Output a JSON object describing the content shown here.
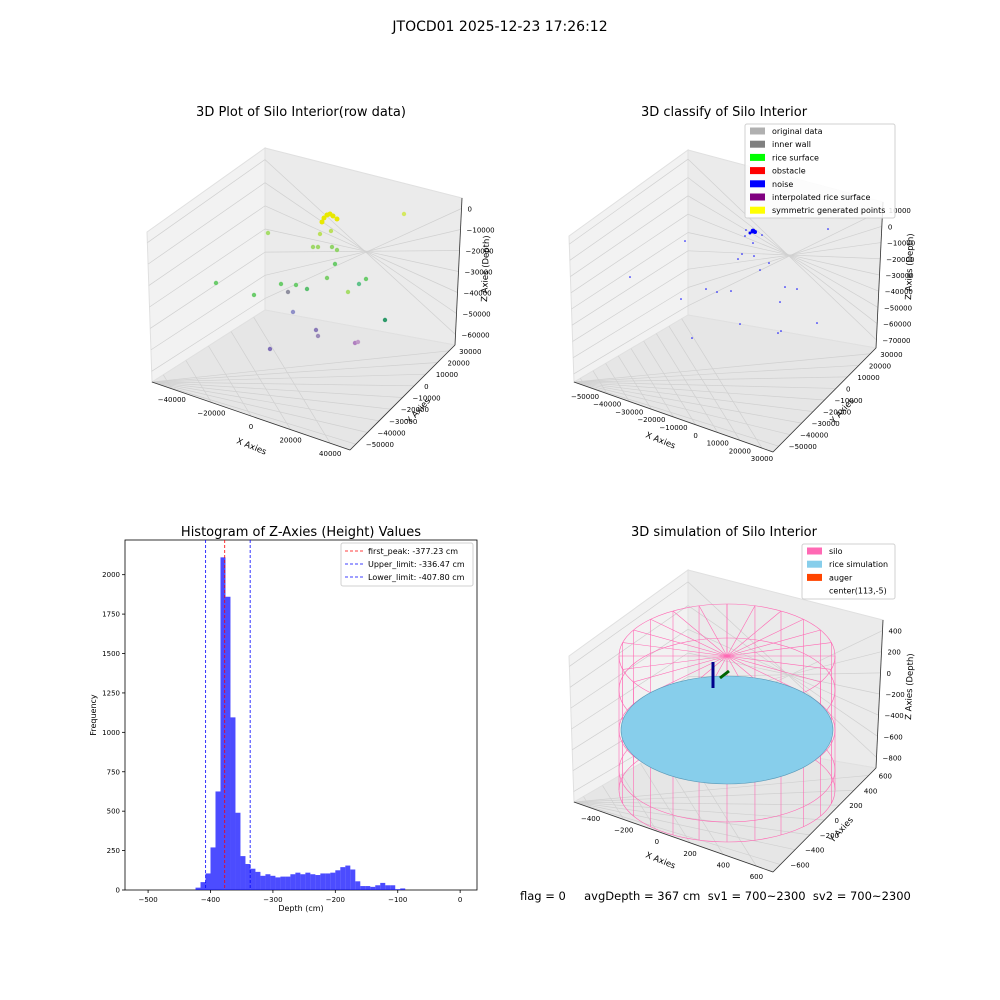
{
  "figure": {
    "suptitle": "JTOCD01 2025-12-23 17:26:12",
    "status_text": "flag = 0     avgDepth = 367 cm  sv1 = 700~2300  sv2 = 700~2300"
  },
  "panel1": {
    "title": "3D Plot of Silo Interior(row data)",
    "xlabel": "X Axies",
    "ylabel": "Y Axies",
    "zlabel": "Z Axies (Depth)",
    "xticks": [
      "−40000",
      "−20000",
      "0",
      "20000",
      "40000"
    ],
    "yticks": [
      "30000",
      "20000",
      "10000",
      "0",
      "−10000",
      "−20000",
      "−30000",
      "−40000",
      "−50000"
    ],
    "zticks": [
      "0",
      "−10000",
      "−20000",
      "−30000",
      "−40000",
      "−50000",
      "−60000"
    ]
  },
  "panel2": {
    "title": "3D classify of Silo Interior",
    "xlabel": "X Axies",
    "ylabel": "Y Axies",
    "zlabel": "Z Axies (Depth)",
    "xticks": [
      "−50000",
      "−40000",
      "−30000",
      "−20000",
      "−10000",
      "0",
      "10000",
      "20000",
      "30000"
    ],
    "yticks": [
      "30000",
      "20000",
      "10000",
      "0",
      "−10000",
      "−20000",
      "−30000",
      "−40000",
      "−50000"
    ],
    "zticks": [
      "10000",
      "0",
      "−10000",
      "−20000",
      "−30000",
      "−40000",
      "−50000",
      "−60000",
      "−70000"
    ],
    "legend": [
      {
        "label": "original data",
        "color": "#b0b0b0"
      },
      {
        "label": "inner wall",
        "color": "#808080"
      },
      {
        "label": "rice surface",
        "color": "#00ff00"
      },
      {
        "label": "obstacle",
        "color": "#ff0000"
      },
      {
        "label": "noise",
        "color": "#0000ff"
      },
      {
        "label": "interpolated rice surface",
        "color": "#800080"
      },
      {
        "label": "symmetric generated points",
        "color": "#ffff00"
      }
    ]
  },
  "panel4": {
    "title": "3D simulation of Silo Interior",
    "xlabel": "X Axies",
    "ylabel": "Y Axies",
    "zlabel": "Z Axies (Depth)",
    "xticks": [
      "−400",
      "−200",
      "0",
      "200",
      "400",
      "600"
    ],
    "yticks": [
      "600",
      "400",
      "200",
      "0",
      "−200",
      "−400",
      "−600"
    ],
    "zticks": [
      "400",
      "200",
      "0",
      "−200",
      "−400",
      "−600",
      "−800"
    ],
    "legend": [
      {
        "label": "silo",
        "color": "#ff69b4"
      },
      {
        "label": "rice simulation",
        "color": "#87ceeb"
      },
      {
        "label": "auger",
        "color": "#ff4500"
      },
      {
        "label": "center(113,-5)",
        "color": ""
      }
    ]
  },
  "chart_data": {
    "type": "bar",
    "title": "Histogram of Z-Axies (Height) Values",
    "xlabel": "Depth (cm)",
    "ylabel": "Frequency",
    "xlim": [
      -537,
      27
    ],
    "ylim": [
      0,
      2220
    ],
    "bar_color": "#0000ff",
    "bin_width": 8,
    "bins": [
      {
        "x": -424,
        "y": 15
      },
      {
        "x": -416,
        "y": 50
      },
      {
        "x": -408,
        "y": 105
      },
      {
        "x": -400,
        "y": 270
      },
      {
        "x": -392,
        "y": 625
      },
      {
        "x": -384,
        "y": 2110
      },
      {
        "x": -376,
        "y": 1860
      },
      {
        "x": -368,
        "y": 1095
      },
      {
        "x": -360,
        "y": 490
      },
      {
        "x": -352,
        "y": 215
      },
      {
        "x": -344,
        "y": 165
      },
      {
        "x": -336,
        "y": 135
      },
      {
        "x": -328,
        "y": 115
      },
      {
        "x": -320,
        "y": 90
      },
      {
        "x": -312,
        "y": 100
      },
      {
        "x": -304,
        "y": 90
      },
      {
        "x": -296,
        "y": 80
      },
      {
        "x": -288,
        "y": 85
      },
      {
        "x": -280,
        "y": 85
      },
      {
        "x": -272,
        "y": 100
      },
      {
        "x": -264,
        "y": 110
      },
      {
        "x": -256,
        "y": 100
      },
      {
        "x": -248,
        "y": 110
      },
      {
        "x": -240,
        "y": 100
      },
      {
        "x": -232,
        "y": 95
      },
      {
        "x": -224,
        "y": 105
      },
      {
        "x": -216,
        "y": 105
      },
      {
        "x": -208,
        "y": 110
      },
      {
        "x": -200,
        "y": 125
      },
      {
        "x": -192,
        "y": 145
      },
      {
        "x": -184,
        "y": 155
      },
      {
        "x": -176,
        "y": 130
      },
      {
        "x": -168,
        "y": 55
      },
      {
        "x": -160,
        "y": 25
      },
      {
        "x": -152,
        "y": 25
      },
      {
        "x": -144,
        "y": 20
      },
      {
        "x": -136,
        "y": 30
      },
      {
        "x": -128,
        "y": 45
      },
      {
        "x": -120,
        "y": 30
      },
      {
        "x": -112,
        "y": 30
      },
      {
        "x": -104,
        "y": 5
      },
      {
        "x": -96,
        "y": 10
      }
    ],
    "vlines": [
      {
        "label": "first_peak: -377.23 cm",
        "x": -377.23,
        "color": "#ff0000"
      },
      {
        "label": "Upper_limit: -336.47 cm",
        "x": -336.47,
        "color": "#0000ff"
      },
      {
        "label": "Lower_limit: -407.80 cm",
        "x": -407.8,
        "color": "#0000ff"
      }
    ],
    "xticks": [
      -500,
      -400,
      -300,
      -200,
      -100,
      0
    ],
    "xtick_labels": [
      "−500",
      "−400",
      "−300",
      "−200",
      "−100",
      "0"
    ],
    "yticks": [
      0,
      250,
      500,
      750,
      1000,
      1250,
      1500,
      1750,
      2000
    ],
    "ytick_labels": [
      "0",
      "250",
      "500",
      "750",
      "1000",
      "1250",
      "1500",
      "1750",
      "2000"
    ]
  }
}
